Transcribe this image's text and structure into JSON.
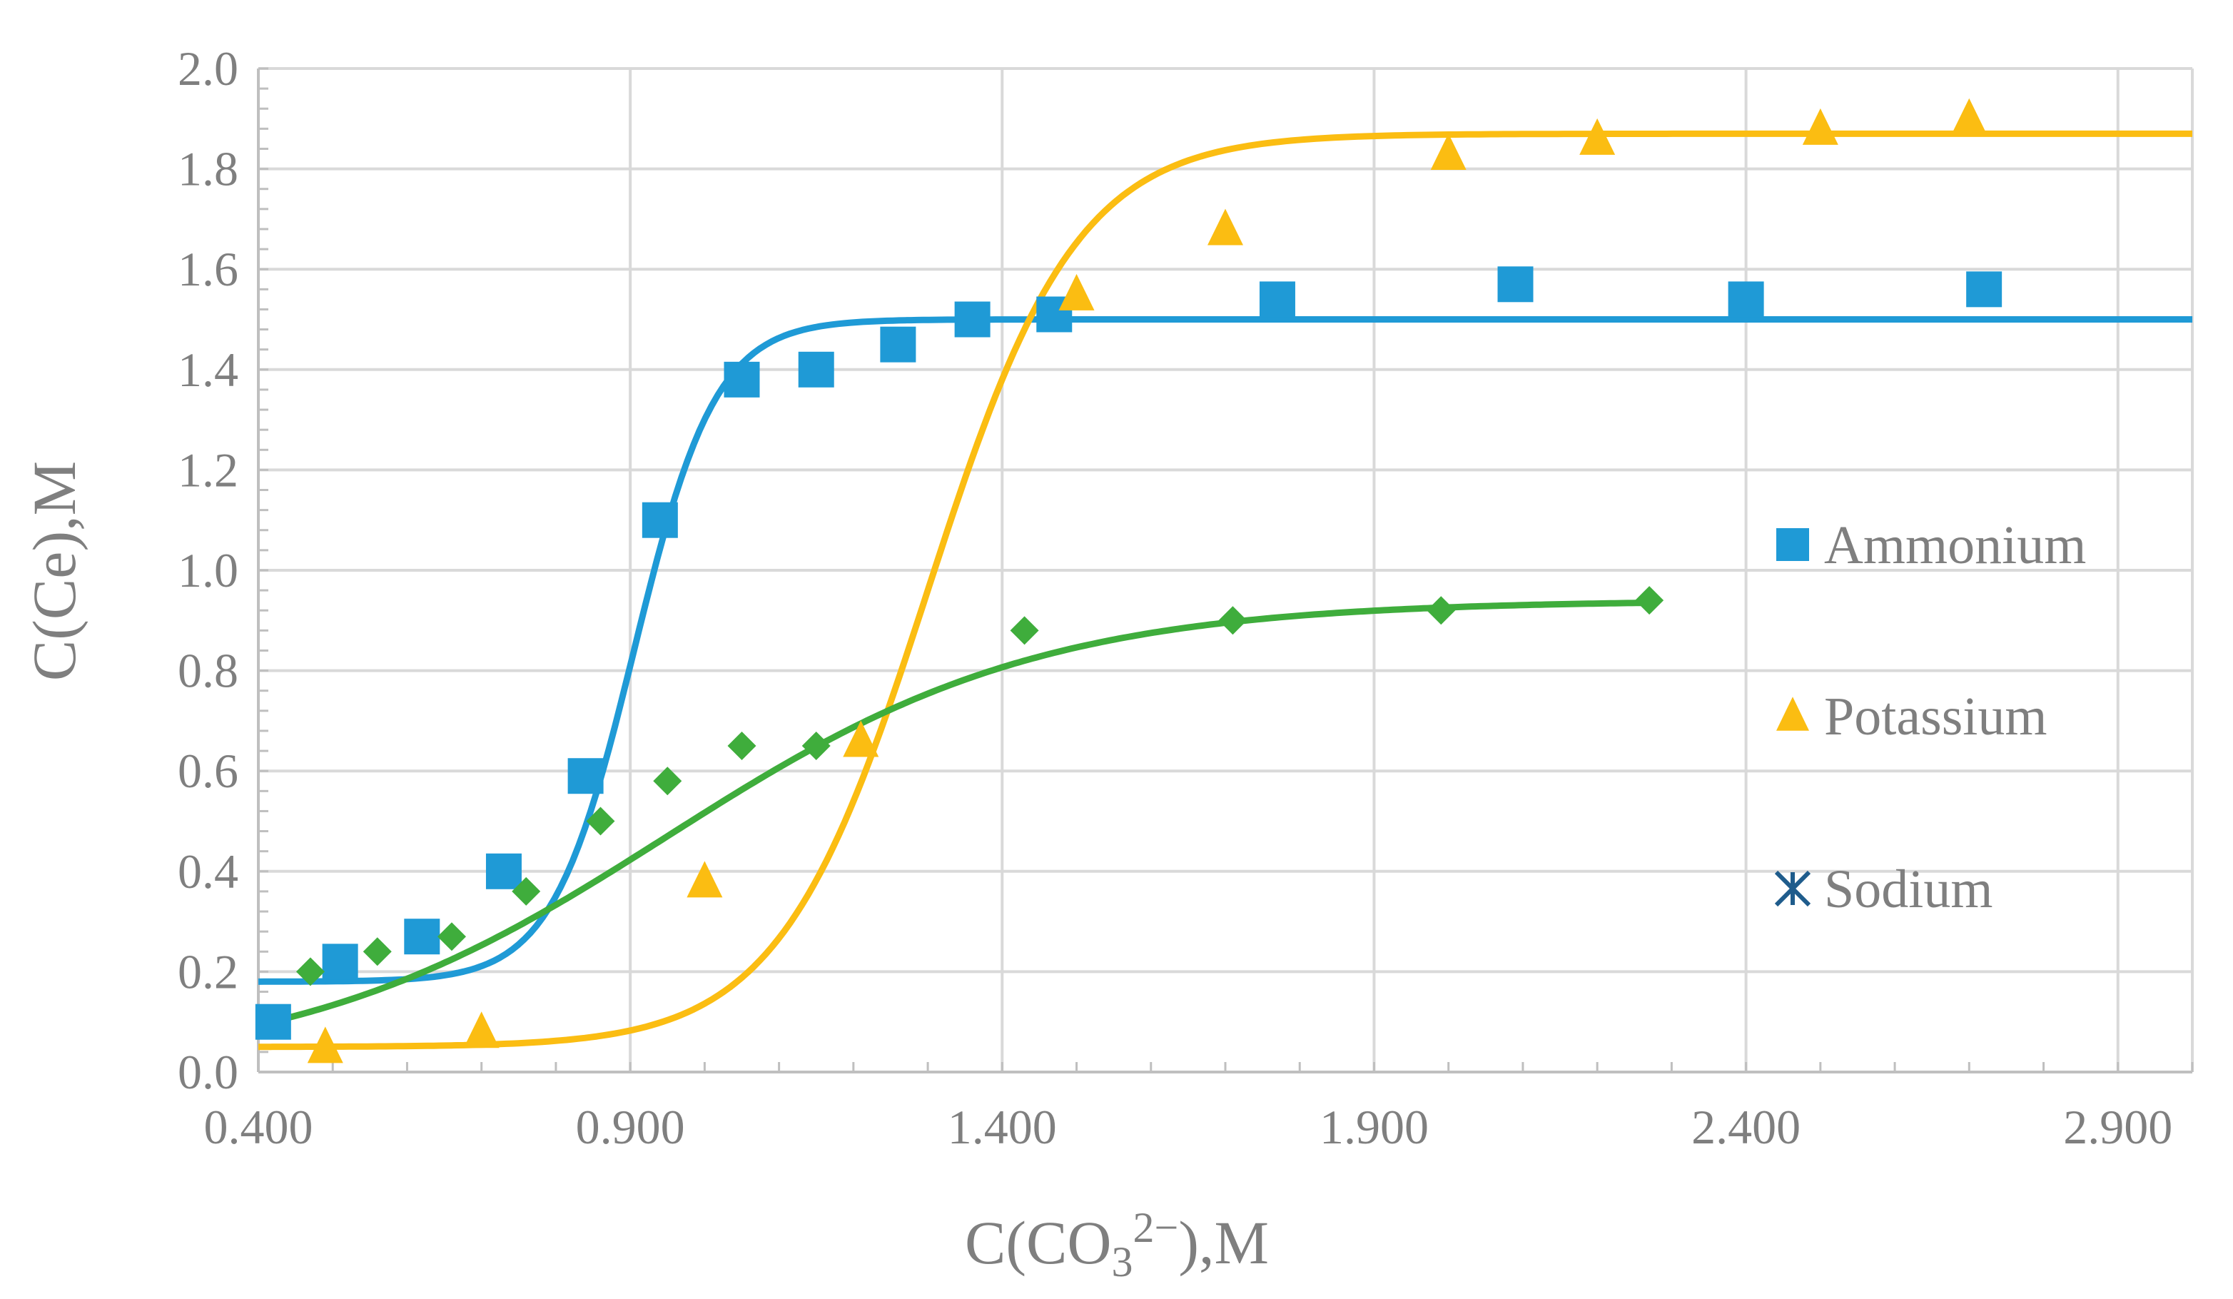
{
  "chart_data": {
    "type": "scatter",
    "title": "",
    "xlabel": {
      "prefix": "C(CO",
      "sub": "3",
      "sup": "2−",
      "suffix": "),M"
    },
    "ylabel": "C(Ce),M",
    "xlim": [
      0.4,
      3.0
    ],
    "ylim": [
      0.0,
      2.0
    ],
    "x_ticks": [
      0.4,
      0.9,
      1.4,
      1.9,
      2.4,
      2.9
    ],
    "x_tick_labels": [
      "0.400",
      "0.900",
      "1.400",
      "1.900",
      "2.400",
      "2.900"
    ],
    "y_ticks": [
      0.0,
      0.2,
      0.4,
      0.6,
      0.8,
      1.0,
      1.2,
      1.4,
      1.6,
      1.8,
      2.0
    ],
    "y_tick_labels": [
      "0.0",
      "0.2",
      "0.4",
      "0.6",
      "0.8",
      "1.0",
      "1.2",
      "1.4",
      "1.6",
      "1.8",
      "2.0"
    ],
    "grid": true,
    "legend_position": "right",
    "series": [
      {
        "name": "Ammonium",
        "marker": "square",
        "color": "#1f9ad6",
        "points": [
          [
            0.42,
            0.1
          ],
          [
            0.51,
            0.22
          ],
          [
            0.62,
            0.27
          ],
          [
            0.73,
            0.4
          ],
          [
            0.84,
            0.59
          ],
          [
            0.94,
            1.1
          ],
          [
            1.05,
            1.38
          ],
          [
            1.15,
            1.4
          ],
          [
            1.26,
            1.45
          ],
          [
            1.36,
            1.5
          ],
          [
            1.47,
            1.51
          ],
          [
            1.77,
            1.54
          ],
          [
            2.09,
            1.57
          ],
          [
            2.4,
            1.54
          ],
          [
            2.72,
            1.56
          ]
        ],
        "fit": {
          "kind": "logistic",
          "base": 0.18,
          "amplitude": 1.32,
          "center": 0.905,
          "slope": 0.055,
          "x_range": [
            0.4,
            3.0
          ]
        }
      },
      {
        "name": "Potassium",
        "marker": "triangle",
        "color": "#fbbd12",
        "points": [
          [
            0.49,
            0.05
          ],
          [
            0.7,
            0.08
          ],
          [
            1.0,
            0.38
          ],
          [
            1.21,
            0.66
          ],
          [
            1.5,
            1.55
          ],
          [
            1.7,
            1.68
          ],
          [
            2.0,
            1.83
          ],
          [
            2.2,
            1.86
          ],
          [
            2.5,
            1.88
          ],
          [
            2.7,
            1.9
          ]
        ],
        "fit": {
          "kind": "logistic",
          "base": 0.05,
          "amplitude": 1.82,
          "center": 1.3,
          "slope": 0.1,
          "x_range": [
            0.4,
            3.0
          ]
        }
      },
      {
        "name": "Sodium",
        "marker": "diamond",
        "color": "#3fad3c",
        "legend_marker": "asterisk",
        "legend_color": "#1f5c8c",
        "points": [
          [
            0.47,
            0.2
          ],
          [
            0.56,
            0.24
          ],
          [
            0.66,
            0.27
          ],
          [
            0.76,
            0.36
          ],
          [
            0.86,
            0.5
          ],
          [
            0.95,
            0.58
          ],
          [
            1.05,
            0.65
          ],
          [
            1.15,
            0.65
          ],
          [
            1.43,
            0.88
          ],
          [
            1.71,
            0.9
          ],
          [
            1.99,
            0.92
          ],
          [
            2.27,
            0.94
          ]
        ],
        "fit": {
          "kind": "logistic",
          "base": 0.0,
          "amplitude": 0.94,
          "center": 0.95,
          "slope": 0.25,
          "x_range": [
            0.4,
            2.27
          ]
        }
      }
    ]
  }
}
